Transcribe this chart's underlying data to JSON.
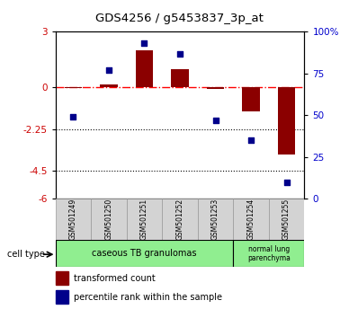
{
  "title": "GDS4256 / g5453837_3p_at",
  "samples": [
    "GSM501249",
    "GSM501250",
    "GSM501251",
    "GSM501252",
    "GSM501253",
    "GSM501254",
    "GSM501255"
  ],
  "transformed_count": [
    -0.05,
    0.15,
    2.0,
    1.0,
    -0.1,
    -1.3,
    -3.6
  ],
  "percentile_rank": [
    49,
    77,
    93,
    87,
    47,
    35,
    10
  ],
  "ylim_left": [
    -6,
    3
  ],
  "ylim_right": [
    0,
    100
  ],
  "yticks_left": [
    3,
    0,
    -2.25,
    -4.5,
    -6
  ],
  "yticks_right": [
    100,
    75,
    50,
    25,
    0
  ],
  "hlines": [
    0,
    -2.25,
    -4.5
  ],
  "hline_styles": [
    "dashdot",
    "dotted",
    "dotted"
  ],
  "hline_colors": [
    "red",
    "black",
    "black"
  ],
  "bar_color": "#8B0000",
  "dot_color": "#00008B",
  "tick_label_color_left": "#cc0000",
  "tick_label_color_right": "#0000cc",
  "legend_bar_label": "transformed count",
  "legend_dot_label": "percentile rank within the sample",
  "cell_type_label": "cell type",
  "group1_label": "caseous TB granulomas",
  "group2_label": "normal lung\nparenchyma",
  "group_color": "#90EE90",
  "sample_box_color": "#d3d3d3"
}
